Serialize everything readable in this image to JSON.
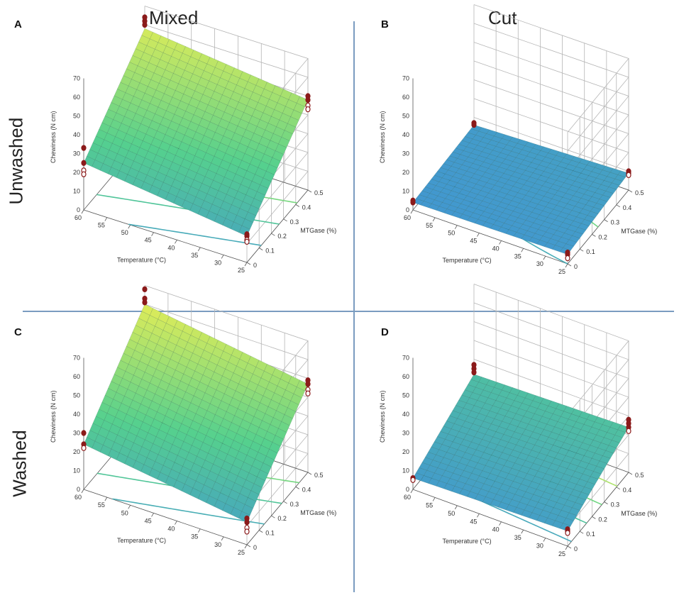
{
  "figure": {
    "col_titles": [
      "Mixed",
      "Cut"
    ],
    "row_titles": [
      "Unwashed",
      "Washed"
    ]
  },
  "colors": {
    "divider": "#7a9cc0",
    "grid": "#b5b5b5",
    "axis": "#555555",
    "point_fill": "#8b1a1a",
    "surface_low": "#3f8fd9",
    "surface_mid": "#55d08e",
    "surface_high": "#e8ee55"
  },
  "chart_data": [
    {
      "panel": "A",
      "type": "surface3d",
      "zlabel": "Chewiness (N cm)",
      "xlabel": "Temperature (°C)",
      "ylabel": "MTGase (%)",
      "x_ticks": [
        "60",
        "55",
        "50",
        "45",
        "40",
        "35",
        "30",
        "25"
      ],
      "y_ticks": [
        "0",
        "0.1",
        "0.2",
        "0.3",
        "0.4",
        "0.5"
      ],
      "z_ticks": [
        "0",
        "10",
        "20",
        "30",
        "40",
        "50",
        "60",
        "70"
      ],
      "xlim": [
        25,
        60
      ],
      "ylim": [
        0,
        0.5
      ],
      "zlim": [
        0,
        70
      ],
      "corners": {
        "t60_m0": 25,
        "t25_m0": 14,
        "t60_m05": 58,
        "t25_m05": 48
      },
      "observations": [
        {
          "temp": 60,
          "mtgase": 0,
          "values": [
            33,
            25,
            21,
            19
          ]
        },
        {
          "temp": 25,
          "mtgase": 0,
          "values": [
            15,
            14,
            12,
            11
          ]
        },
        {
          "temp": 60,
          "mtgase": 0.5,
          "values": [
            64,
            62,
            60
          ]
        },
        {
          "temp": 25,
          "mtgase": 0.5,
          "values": [
            50,
            48,
            45,
            43
          ]
        }
      ],
      "contours": [
        12,
        22,
        32,
        42
      ]
    },
    {
      "panel": "B",
      "type": "surface3d",
      "zlabel": "Chewiness (N cm)",
      "xlabel": "Temperature (°C)",
      "ylabel": "MTGase (%)",
      "x_ticks": [
        "60",
        "55",
        "50",
        "45",
        "40",
        "35",
        "30",
        "25"
      ],
      "y_ticks": [
        "0",
        "0.1",
        "0.2",
        "0.3",
        "0.4",
        "0.5"
      ],
      "z_ticks": [
        "0",
        "10",
        "20",
        "30",
        "40",
        "50",
        "60",
        "70"
      ],
      "xlim": [
        25,
        60
      ],
      "ylim": [
        0,
        0.5
      ],
      "zlim": [
        0,
        70
      ],
      "corners": {
        "t60_m0": 4,
        "t25_m0": 5,
        "t60_m05": 6,
        "t25_m05": 9
      },
      "observations": [
        {
          "temp": 60,
          "mtgase": 0,
          "values": [
            5,
            4
          ]
        },
        {
          "temp": 25,
          "mtgase": 0,
          "values": [
            6,
            5,
            3
          ]
        },
        {
          "temp": 60,
          "mtgase": 0.5,
          "values": [
            7,
            6
          ]
        },
        {
          "temp": 25,
          "mtgase": 0.5,
          "values": [
            10,
            9,
            8
          ]
        }
      ],
      "contours": [
        5,
        7
      ]
    },
    {
      "panel": "C",
      "type": "surface3d",
      "zlabel": "Chewiness (N cm)",
      "xlabel": "Temperature (°C)",
      "ylabel": "MTGase (%)",
      "x_ticks": [
        "60",
        "55",
        "50",
        "45",
        "40",
        "35",
        "30",
        "25"
      ],
      "y_ticks": [
        "0",
        "0.1",
        "0.2",
        "0.3",
        "0.4",
        "0.5"
      ],
      "z_ticks": [
        "0",
        "10",
        "20",
        "30",
        "40",
        "50",
        "60",
        "70"
      ],
      "xlim": [
        25,
        60
      ],
      "ylim": [
        0,
        0.5
      ],
      "zlim": [
        0,
        70
      ],
      "corners": {
        "t60_m0": 24,
        "t25_m0": 12,
        "t60_m05": 60,
        "t25_m05": 47
      },
      "observations": [
        {
          "temp": 60,
          "mtgase": 0,
          "values": [
            30,
            24,
            22
          ]
        },
        {
          "temp": 25,
          "mtgase": 0,
          "values": [
            14,
            12,
            9,
            7
          ]
        },
        {
          "temp": 60,
          "mtgase": 0.5,
          "values": [
            68,
            63,
            61
          ]
        },
        {
          "temp": 25,
          "mtgase": 0.5,
          "values": [
            49,
            47,
            44,
            42
          ]
        }
      ],
      "contours": [
        12,
        22,
        32,
        42
      ]
    },
    {
      "panel": "D",
      "type": "surface3d",
      "zlabel": "Chewiness (N cm)",
      "xlabel": "Temperature (°C)",
      "ylabel": "MTGase (%)",
      "x_ticks": [
        "60",
        "55",
        "50",
        "45",
        "40",
        "35",
        "30",
        "25"
      ],
      "y_ticks": [
        "0",
        "0.1",
        "0.2",
        "0.3",
        "0.4",
        "0.5"
      ],
      "z_ticks": [
        "0",
        "10",
        "20",
        "30",
        "40",
        "50",
        "60",
        "70"
      ],
      "xlim": [
        25,
        60
      ],
      "ylim": [
        0,
        0.5
      ],
      "zlim": [
        0,
        70
      ],
      "corners": {
        "t60_m0": 6,
        "t25_m0": 8,
        "t60_m05": 22,
        "t25_m05": 24
      },
      "observations": [
        {
          "temp": 60,
          "mtgase": 0,
          "values": [
            6,
            5
          ]
        },
        {
          "temp": 25,
          "mtgase": 0,
          "values": [
            9,
            8,
            7
          ]
        },
        {
          "temp": 60,
          "mtgase": 0.5,
          "values": [
            27,
            25,
            23
          ]
        },
        {
          "temp": 25,
          "mtgase": 0.5,
          "values": [
            28,
            26,
            24,
            22
          ]
        }
      ],
      "contours": [
        9,
        13,
        17,
        21
      ]
    }
  ]
}
